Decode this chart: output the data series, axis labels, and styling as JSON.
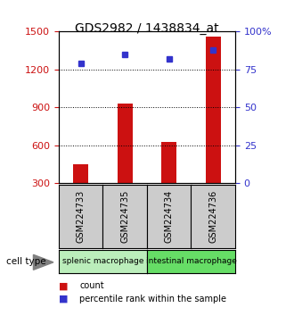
{
  "title": "GDS2982 / 1438834_at",
  "samples": [
    "GSM224733",
    "GSM224735",
    "GSM224734",
    "GSM224736"
  ],
  "counts": [
    450,
    930,
    630,
    1460
  ],
  "percentiles": [
    79,
    85,
    82,
    88
  ],
  "ylim_left": [
    300,
    1500
  ],
  "ylim_right": [
    0,
    100
  ],
  "yticks_left": [
    300,
    600,
    900,
    1200,
    1500
  ],
  "yticks_right": [
    0,
    25,
    50,
    75,
    100
  ],
  "ytick_labels_right": [
    "0",
    "25",
    "50",
    "75",
    "100%"
  ],
  "bar_color": "#cc1111",
  "dot_color": "#3333cc",
  "bar_width": 0.35,
  "groups": [
    {
      "label": "splenic macrophage",
      "samples": [
        0,
        1
      ],
      "color": "#bbeebb"
    },
    {
      "label": "intestinal macrophage",
      "samples": [
        2,
        3
      ],
      "color": "#66dd66"
    }
  ],
  "cell_type_label": "cell type",
  "legend_count_label": "count",
  "legend_pct_label": "percentile rank within the sample",
  "background_color": "#ffffff",
  "sample_box_color": "#cccccc",
  "title_fontsize": 10,
  "tick_fontsize": 8
}
